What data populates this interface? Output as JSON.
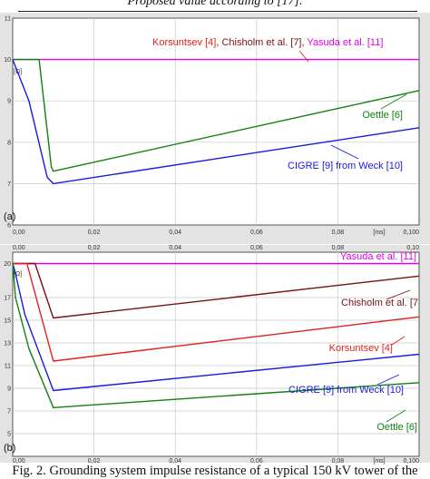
{
  "header_fragment": "Proposed value according to [17].",
  "caption": "Fig. 2.  Grounding system impulse resistance of a typical 150 kV tower of the",
  "colors": {
    "magenta": "#e000e0",
    "darkred": "#7a1010",
    "red": "#e02020",
    "blue": "#1a1ae0",
    "green": "#128012",
    "grid": "#c8c8c8",
    "frame": "#555555"
  },
  "chart_data": [
    {
      "type": "line",
      "panel_label": "(a)",
      "xlabel": "[ms]",
      "ylabel": "[Ω]",
      "xlim": [
        0,
        0.1
      ],
      "ylim": [
        6,
        11
      ],
      "x_ticks": [
        "0,00",
        "0,02",
        "0,04",
        "0,06",
        "0,08",
        "0,100"
      ],
      "y_ticks": [
        "6",
        "7",
        "8",
        "9",
        "10",
        "11"
      ],
      "grid": true,
      "series": [
        {
          "name": "Korsuntsev [4], Chisholm et al. [7], Yasuda et al. [11]",
          "color": "magenta",
          "x": [
            0,
            0.1
          ],
          "y": [
            10,
            10
          ]
        },
        {
          "name": "Oettle [6]",
          "color": "green",
          "x": [
            0,
            0.0065,
            0.0095,
            0.01,
            0.1
          ],
          "y": [
            10,
            10,
            7.4,
            7.3,
            9.25
          ]
        },
        {
          "name": "CIGRE [9] from Weck [10]",
          "color": "blue",
          "x": [
            0,
            0.004,
            0.0085,
            0.01,
            0.1
          ],
          "y": [
            10,
            9.0,
            7.15,
            7.0,
            8.35
          ]
        }
      ],
      "annotations": [
        {
          "parts": [
            {
              "text": "Korsuntsev [4]",
              "color": "red"
            },
            {
              "text": ", ",
              "color": "darkred"
            },
            {
              "text": "Chisholm et al. [7]",
              "color": "darkred"
            },
            {
              "text": ", ",
              "color": "darkred"
            },
            {
              "text": "Yasuda et al. [11]",
              "color": "magenta"
            }
          ]
        },
        {
          "parts": [
            {
              "text": "Oettle [6]",
              "color": "green"
            }
          ]
        },
        {
          "parts": [
            {
              "text": "CIGRE [9] from Weck [10]",
              "color": "blue"
            }
          ]
        }
      ]
    },
    {
      "type": "line",
      "panel_label": "(b)",
      "xlabel": "[ms]",
      "ylabel": "[Ω]",
      "xlim": [
        0,
        0.1
      ],
      "ylim": [
        3,
        21
      ],
      "x_ticks": [
        "0,00",
        "0,02",
        "0,04",
        "0,06",
        "0,08",
        "0,100"
      ],
      "x_top_ticks": [
        "0,00",
        "0,02",
        "0,04",
        "0,06",
        "0,08",
        "0,10"
      ],
      "y_ticks": [
        "5",
        "7",
        "9",
        "11",
        "13",
        "15",
        "17",
        "20"
      ],
      "grid": true,
      "series": [
        {
          "name": "Yasuda et al. [11]",
          "color": "magenta",
          "x": [
            0,
            0.1
          ],
          "y": [
            20,
            20
          ]
        },
        {
          "name": "Chisholm et al. [7]",
          "color": "darkred",
          "x": [
            0,
            0.0055,
            0.01,
            0.1
          ],
          "y": [
            20,
            20,
            15.2,
            18.9
          ]
        },
        {
          "name": "Korsuntsev [4]",
          "color": "red",
          "x": [
            0,
            0.0035,
            0.01,
            0.1
          ],
          "y": [
            20,
            20,
            11.4,
            15.3
          ]
        },
        {
          "name": "CIGRE [9] from Weck [10]",
          "color": "blue",
          "x": [
            0,
            0.0005,
            0.003,
            0.01,
            0.1
          ],
          "y": [
            20,
            19.4,
            15.5,
            8.8,
            12.0
          ]
        },
        {
          "name": "Oettle [6]",
          "color": "green",
          "x": [
            0,
            0.0007,
            0.004,
            0.01,
            0.1
          ],
          "y": [
            20,
            17.0,
            12.5,
            7.3,
            9.5
          ]
        }
      ],
      "annotations": [
        {
          "parts": [
            {
              "text": "Yasuda et al. [11]",
              "color": "magenta"
            }
          ]
        },
        {
          "parts": [
            {
              "text": "Chisholm et al. [7",
              "color": "darkred"
            }
          ]
        },
        {
          "parts": [
            {
              "text": "Korsuntsev [4]",
              "color": "red"
            }
          ]
        },
        {
          "parts": [
            {
              "text": "CIGRE [9] from Weck [10]",
              "color": "blue"
            }
          ]
        },
        {
          "parts": [
            {
              "text": "Oettle [6]",
              "color": "green"
            }
          ]
        }
      ]
    }
  ]
}
